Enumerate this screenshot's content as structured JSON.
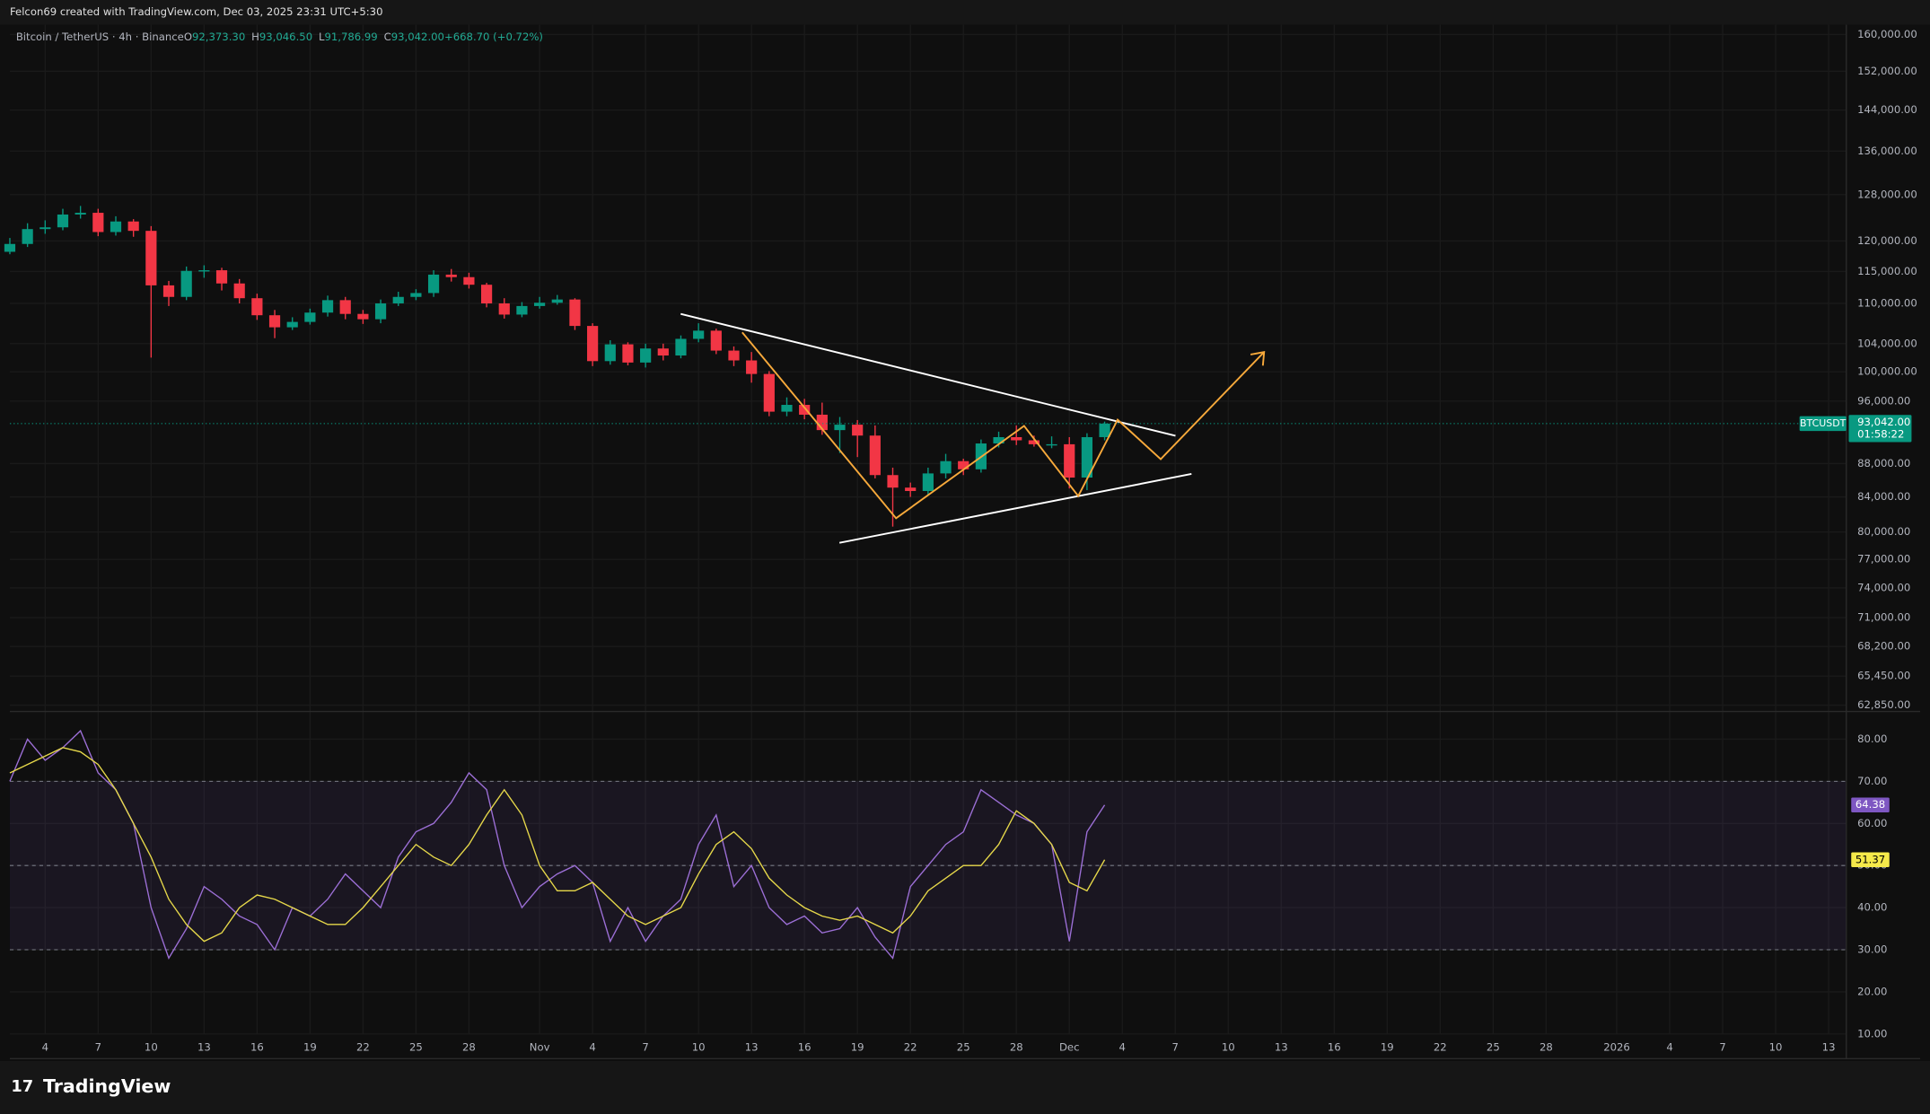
{
  "header": "Felcon69 created with TradingView.com, Dec 03, 2025 23:31 UTC+5:30",
  "brand": "TradingView",
  "chart_data": [
    {
      "type": "candlestick",
      "title": "Bitcoin / TetherUS · 4h · Binance",
      "ohlc_legend": [
        {
          "key": "O",
          "value": "92,373.30"
        },
        {
          "key": "H",
          "value": "93,046.50"
        },
        {
          "key": "L",
          "value": "91,786.99"
        },
        {
          "key": "C",
          "value": "93,042.00"
        },
        {
          "key": "",
          "value": "+668.70 (+0.72%)"
        }
      ],
      "symbol_tag": "BTCUSDT",
      "last_value_label": "93,042.00",
      "countdown": "01:58:22",
      "up_color": "#089981",
      "down_color": "#f23645",
      "log_scale": true,
      "grid": true,
      "x": [
        "2025-10-02",
        "2025-10-03",
        "2025-10-04",
        "2025-10-05",
        "2025-10-06",
        "2025-10-07",
        "2025-10-08",
        "2025-10-09",
        "2025-10-10",
        "2025-10-11",
        "2025-10-12",
        "2025-10-13",
        "2025-10-14",
        "2025-10-15",
        "2025-10-16",
        "2025-10-17",
        "2025-10-18",
        "2025-10-19",
        "2025-10-20",
        "2025-10-21",
        "2025-10-22",
        "2025-10-23",
        "2025-10-24",
        "2025-10-25",
        "2025-10-26",
        "2025-10-27",
        "2025-10-28",
        "2025-10-29",
        "2025-10-30",
        "2025-10-31",
        "2025-11-01",
        "2025-11-02",
        "2025-11-03",
        "2025-11-04",
        "2025-11-05",
        "2025-11-06",
        "2025-11-07",
        "2025-11-08",
        "2025-11-09",
        "2025-11-10",
        "2025-11-11",
        "2025-11-12",
        "2025-11-13",
        "2025-11-14",
        "2025-11-15",
        "2025-11-16",
        "2025-11-17",
        "2025-11-18",
        "2025-11-19",
        "2025-11-20",
        "2025-11-21",
        "2025-11-22",
        "2025-11-23",
        "2025-11-24",
        "2025-11-25",
        "2025-11-26",
        "2025-11-27",
        "2025-11-28",
        "2025-11-29",
        "2025-11-30",
        "2025-12-01",
        "2025-12-02",
        "2025-12-03"
      ],
      "open": [
        118200,
        119500,
        122000,
        122300,
        124500,
        124800,
        121500,
        123300,
        121700,
        112800,
        111000,
        115100,
        115200,
        113100,
        110800,
        108200,
        106400,
        107200,
        108600,
        110500,
        108400,
        107600,
        110000,
        111000,
        111600,
        114500,
        114100,
        112900,
        110000,
        108300,
        109600,
        110100,
        110600,
        106600,
        101500,
        103900,
        101300,
        103300,
        102300,
        104700,
        105900,
        103000,
        101600,
        99700,
        94600,
        95500,
        94200,
        92200,
        92900,
        91500,
        86600,
        85100,
        84700,
        86800,
        88300,
        87300,
        90500,
        91300,
        90900,
        90400,
        90400,
        86300,
        91300
      ],
      "high": [
        120500,
        123000,
        123500,
        125500,
        126000,
        125500,
        124200,
        123700,
        122500,
        113500,
        115800,
        116000,
        115600,
        113800,
        111500,
        109000,
        107900,
        109200,
        111200,
        111000,
        109000,
        110600,
        111800,
        112200,
        115200,
        115400,
        114800,
        113200,
        110800,
        110200,
        111000,
        111300,
        110800,
        107000,
        104500,
        104200,
        104000,
        104000,
        105200,
        107000,
        106200,
        103600,
        102800,
        100100,
        96500,
        96300,
        95800,
        93900,
        93500,
        92800,
        87500,
        85700,
        87500,
        89200,
        88600,
        91000,
        92000,
        92800,
        91500,
        91400,
        91300,
        91800,
        93300
      ],
      "low": [
        117800,
        119000,
        121200,
        121800,
        123800,
        120800,
        120900,
        120700,
        102000,
        109600,
        110500,
        114000,
        112000,
        110000,
        107500,
        104800,
        106000,
        106800,
        108000,
        107600,
        106900,
        107000,
        109600,
        110500,
        111000,
        113400,
        112300,
        109400,
        107700,
        107900,
        109200,
        109800,
        106000,
        100800,
        101000,
        100900,
        100600,
        101600,
        101900,
        104200,
        102500,
        100800,
        98500,
        94000,
        94000,
        93600,
        91600,
        89300,
        88800,
        86200,
        80600,
        84000,
        84200,
        86200,
        86600,
        86900,
        90000,
        90300,
        90100,
        89900,
        85000,
        84800,
        90900
      ],
      "close": [
        119500,
        122000,
        122300,
        124500,
        124800,
        121500,
        123300,
        121700,
        112800,
        111000,
        115100,
        115200,
        113100,
        110800,
        108200,
        106400,
        107200,
        108600,
        110500,
        108400,
        107600,
        110000,
        111000,
        111600,
        114500,
        114100,
        112900,
        110000,
        108300,
        109600,
        110100,
        110600,
        106600,
        101500,
        103900,
        101300,
        103300,
        102300,
        104700,
        105900,
        103000,
        101600,
        99700,
        94600,
        95500,
        94200,
        92200,
        92900,
        91500,
        86600,
        85100,
        84700,
        86800,
        88300,
        87300,
        90500,
        91300,
        90900,
        90400,
        90400,
        86300,
        91300,
        93042
      ],
      "xlim": [
        "2025-10-02",
        "2026-01-14"
      ],
      "xticks": [
        {
          "value": "2025-10-04",
          "label": "4"
        },
        {
          "value": "2025-10-07",
          "label": "7"
        },
        {
          "value": "2025-10-10",
          "label": "10"
        },
        {
          "value": "2025-10-13",
          "label": "13"
        },
        {
          "value": "2025-10-16",
          "label": "16"
        },
        {
          "value": "2025-10-19",
          "label": "19"
        },
        {
          "value": "2025-10-22",
          "label": "22"
        },
        {
          "value": "2025-10-25",
          "label": "25"
        },
        {
          "value": "2025-10-28",
          "label": "28"
        },
        {
          "value": "2025-11-01",
          "label": "Nov"
        },
        {
          "value": "2025-11-04",
          "label": "4"
        },
        {
          "value": "2025-11-07",
          "label": "7"
        },
        {
          "value": "2025-11-10",
          "label": "10"
        },
        {
          "value": "2025-11-13",
          "label": "13"
        },
        {
          "value": "2025-11-16",
          "label": "16"
        },
        {
          "value": "2025-11-19",
          "label": "19"
        },
        {
          "value": "2025-11-22",
          "label": "22"
        },
        {
          "value": "2025-11-25",
          "label": "25"
        },
        {
          "value": "2025-11-28",
          "label": "28"
        },
        {
          "value": "2025-12-01",
          "label": "Dec"
        },
        {
          "value": "2025-12-04",
          "label": "4"
        },
        {
          "value": "2025-12-07",
          "label": "7"
        },
        {
          "value": "2025-12-10",
          "label": "10"
        },
        {
          "value": "2025-12-13",
          "label": "13"
        },
        {
          "value": "2025-12-16",
          "label": "16"
        },
        {
          "value": "2025-12-19",
          "label": "19"
        },
        {
          "value": "2025-12-22",
          "label": "22"
        },
        {
          "value": "2025-12-25",
          "label": "25"
        },
        {
          "value": "2025-12-28",
          "label": "28"
        },
        {
          "value": "2026-01-01",
          "label": "2026"
        },
        {
          "value": "2026-01-04",
          "label": "4"
        },
        {
          "value": "2026-01-07",
          "label": "7"
        },
        {
          "value": "2026-01-10",
          "label": "10"
        },
        {
          "value": "2026-01-13",
          "label": "13"
        }
      ],
      "ylim": [
        62300,
        162200
      ],
      "yticks": [
        {
          "value": 160000,
          "label": "160,000.00"
        },
        {
          "value": 152000,
          "label": "152,000.00"
        },
        {
          "value": 144000,
          "label": "144,000.00"
        },
        {
          "value": 136000,
          "label": "136,000.00"
        },
        {
          "value": 128000,
          "label": "128,000.00"
        },
        {
          "value": 120000,
          "label": "120,000.00"
        },
        {
          "value": 115000,
          "label": "115,000.00"
        },
        {
          "value": 110000,
          "label": "110,000.00"
        },
        {
          "value": 104000,
          "label": "104,000.00"
        },
        {
          "value": 100000,
          "label": "100,000.00"
        },
        {
          "value": 96000,
          "label": "96,000.00"
        },
        {
          "value": 88000,
          "label": "88,000.00"
        },
        {
          "value": 84000,
          "label": "84,000.00"
        },
        {
          "value": 80000,
          "label": "80,000.00"
        },
        {
          "value": 77000,
          "label": "77,000.00"
        },
        {
          "value": 74000,
          "label": "74,000.00"
        },
        {
          "value": 71000,
          "label": "71,000.00"
        },
        {
          "value": 68200,
          "label": "68,200.00"
        },
        {
          "value": 65450,
          "label": "65,450.00"
        },
        {
          "value": 62850,
          "label": "62,850.00"
        }
      ]
    },
    {
      "type": "line",
      "grid": true,
      "x": [
        "2025-10-02",
        "2025-10-03",
        "2025-10-04",
        "2025-10-05",
        "2025-10-06",
        "2025-10-07",
        "2025-10-08",
        "2025-10-09",
        "2025-10-10",
        "2025-10-11",
        "2025-10-12",
        "2025-10-13",
        "2025-10-14",
        "2025-10-15",
        "2025-10-16",
        "2025-10-17",
        "2025-10-18",
        "2025-10-19",
        "2025-10-20",
        "2025-10-21",
        "2025-10-22",
        "2025-10-23",
        "2025-10-24",
        "2025-10-25",
        "2025-10-26",
        "2025-10-27",
        "2025-10-28",
        "2025-10-29",
        "2025-10-30",
        "2025-10-31",
        "2025-11-01",
        "2025-11-02",
        "2025-11-03",
        "2025-11-04",
        "2025-11-05",
        "2025-11-06",
        "2025-11-07",
        "2025-11-08",
        "2025-11-09",
        "2025-11-10",
        "2025-11-11",
        "2025-11-12",
        "2025-11-13",
        "2025-11-14",
        "2025-11-15",
        "2025-11-16",
        "2025-11-17",
        "2025-11-18",
        "2025-11-19",
        "2025-11-20",
        "2025-11-21",
        "2025-11-22",
        "2025-11-23",
        "2025-11-24",
        "2025-11-25",
        "2025-11-26",
        "2025-11-27",
        "2025-11-28",
        "2025-11-29",
        "2025-11-30",
        "2025-12-01",
        "2025-12-02",
        "2025-12-03"
      ],
      "series": [
        {
          "color": "#9c6fd6",
          "tag_color": "#7e57c2",
          "last_label": "64.38",
          "values": [
            70,
            80,
            75,
            78,
            82,
            72,
            68,
            60,
            40,
            28,
            35,
            45,
            42,
            38,
            36,
            30,
            40,
            38,
            42,
            48,
            44,
            40,
            52,
            58,
            60,
            65,
            72,
            68,
            50,
            40,
            45,
            48,
            50,
            46,
            32,
            40,
            32,
            38,
            42,
            55,
            62,
            45,
            50,
            40,
            36,
            38,
            34,
            35,
            40,
            33,
            28,
            45,
            50,
            55,
            58,
            68,
            65,
            62,
            60,
            55,
            32,
            58,
            64.38
          ]
        },
        {
          "color": "#e6d84a",
          "tag_color": "#f5e94a",
          "last_label": "51.37",
          "values": [
            72,
            74,
            76,
            78,
            77,
            74,
            68,
            60,
            52,
            42,
            36,
            32,
            34,
            40,
            43,
            42,
            40,
            38,
            36,
            36,
            40,
            45,
            50,
            55,
            52,
            50,
            55,
            62,
            68,
            62,
            50,
            44,
            44,
            46,
            42,
            38,
            36,
            38,
            40,
            48,
            55,
            58,
            54,
            47,
            43,
            40,
            38,
            37,
            38,
            36,
            34,
            38,
            44,
            47,
            50,
            50,
            55,
            63,
            60,
            55,
            46,
            44,
            51.37
          ]
        }
      ],
      "levels": [
        30,
        50,
        70
      ],
      "ylim": [
        10,
        86
      ],
      "yticks": [
        {
          "value": 10,
          "label": "10.00"
        },
        {
          "value": 20,
          "label": "20.00"
        },
        {
          "value": 30,
          "label": "30.00"
        },
        {
          "value": 40,
          "label": "40.00"
        },
        {
          "value": 50,
          "label": "50.00"
        },
        {
          "value": 60,
          "label": "60.00"
        },
        {
          "value": 70,
          "label": "70.00"
        },
        {
          "value": 80,
          "label": "80.00"
        }
      ]
    }
  ]
}
